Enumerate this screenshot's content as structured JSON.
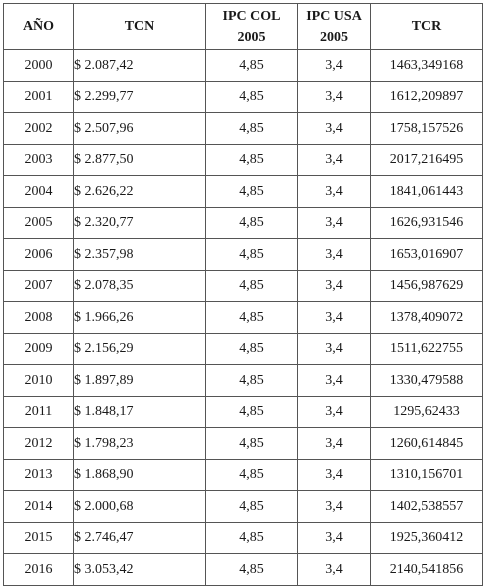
{
  "table": {
    "headers": [
      {
        "line1": "AÑO",
        "line2": ""
      },
      {
        "line1": "TCN",
        "line2": ""
      },
      {
        "line1": "IPC COL",
        "line2": "2005"
      },
      {
        "line1": "IPC USA",
        "line2": "2005"
      },
      {
        "line1": "TCR",
        "line2": ""
      }
    ],
    "rows": [
      {
        "year": "2000",
        "tcn": "$ 2.087,42",
        "ipc_col": "4,85",
        "ipc_usa": "3,4",
        "tcr": "1463,349168"
      },
      {
        "year": "2001",
        "tcn": "$ 2.299,77",
        "ipc_col": "4,85",
        "ipc_usa": "3,4",
        "tcr": "1612,209897"
      },
      {
        "year": "2002",
        "tcn": "$ 2.507,96",
        "ipc_col": "4,85",
        "ipc_usa": "3,4",
        "tcr": "1758,157526"
      },
      {
        "year": "2003",
        "tcn": "$ 2.877,50",
        "ipc_col": "4,85",
        "ipc_usa": "3,4",
        "tcr": "2017,216495"
      },
      {
        "year": "2004",
        "tcn": "$ 2.626,22",
        "ipc_col": "4,85",
        "ipc_usa": "3,4",
        "tcr": "1841,061443"
      },
      {
        "year": "2005",
        "tcn": "$ 2.320,77",
        "ipc_col": "4,85",
        "ipc_usa": "3,4",
        "tcr": "1626,931546"
      },
      {
        "year": "2006",
        "tcn": "$ 2.357,98",
        "ipc_col": "4,85",
        "ipc_usa": "3,4",
        "tcr": "1653,016907"
      },
      {
        "year": "2007",
        "tcn": "$ 2.078,35",
        "ipc_col": "4,85",
        "ipc_usa": "3,4",
        "tcr": "1456,987629"
      },
      {
        "year": "2008",
        "tcn": "$ 1.966,26",
        "ipc_col": "4,85",
        "ipc_usa": "3,4",
        "tcr": "1378,409072"
      },
      {
        "year": "2009",
        "tcn": "$ 2.156,29",
        "ipc_col": "4,85",
        "ipc_usa": "3,4",
        "tcr": "1511,622755"
      },
      {
        "year": "2010",
        "tcn": "$ 1.897,89",
        "ipc_col": "4,85",
        "ipc_usa": "3,4",
        "tcr": "1330,479588"
      },
      {
        "year": "2011",
        "tcn": "$ 1.848,17",
        "ipc_col": "4,85",
        "ipc_usa": "3,4",
        "tcr": "1295,62433"
      },
      {
        "year": "2012",
        "tcn": "$ 1.798,23",
        "ipc_col": "4,85",
        "ipc_usa": "3,4",
        "tcr": "1260,614845"
      },
      {
        "year": "2013",
        "tcn": "$ 1.868,90",
        "ipc_col": "4,85",
        "ipc_usa": "3,4",
        "tcr": "1310,156701"
      },
      {
        "year": "2014",
        "tcn": "$ 2.000,68",
        "ipc_col": "4,85",
        "ipc_usa": "3,4",
        "tcr": "1402,538557"
      },
      {
        "year": "2015",
        "tcn": "$ 2.746,47",
        "ipc_col": "4,85",
        "ipc_usa": "3,4",
        "tcr": "1925,360412"
      },
      {
        "year": "2016",
        "tcn": "$ 3.053,42",
        "ipc_col": "4,85",
        "ipc_usa": "3,4",
        "tcr": "2140,541856"
      }
    ]
  }
}
